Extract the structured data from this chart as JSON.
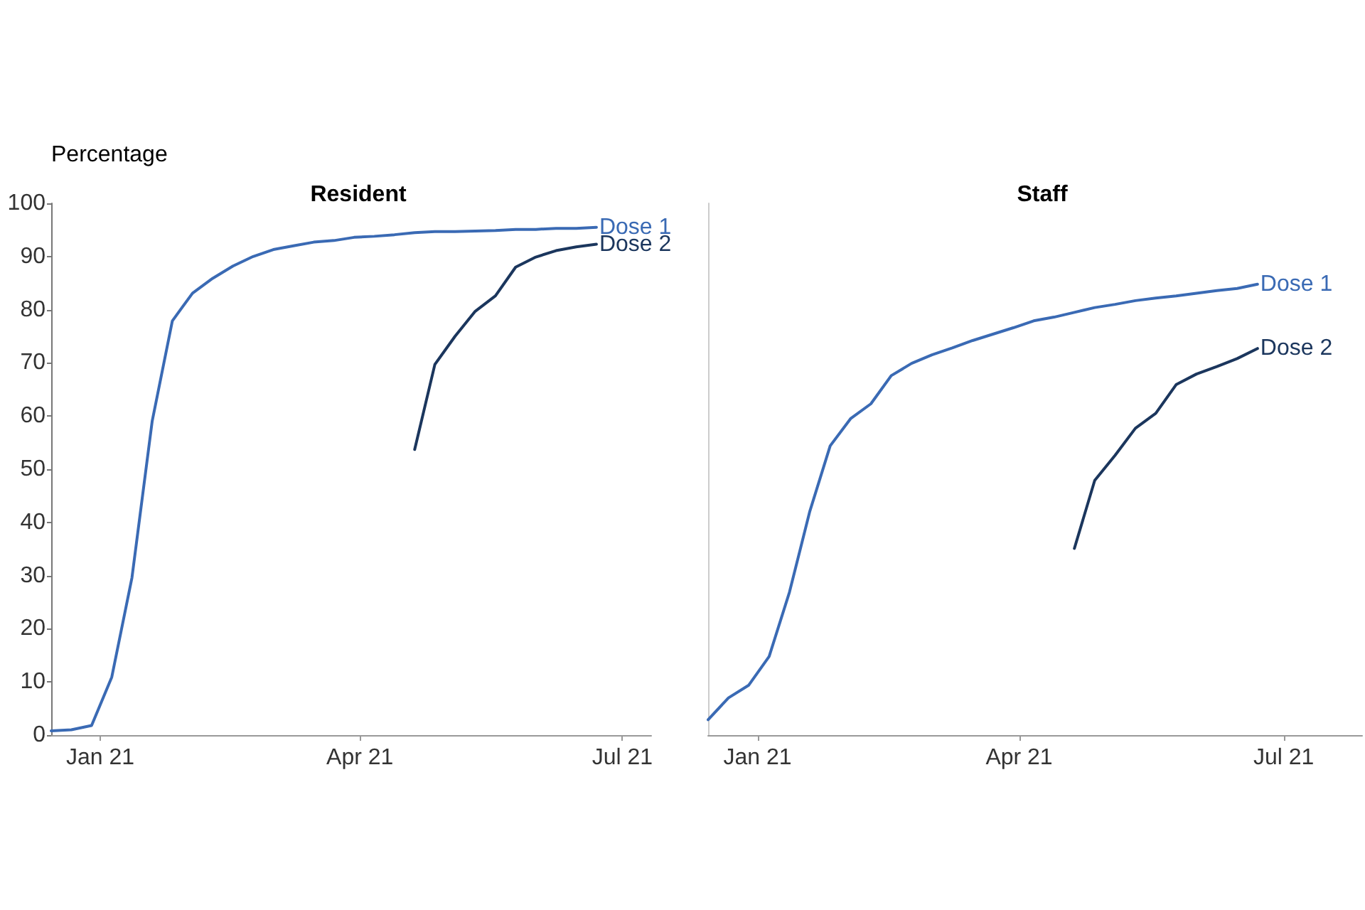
{
  "chart_data": [
    {
      "type": "line",
      "title": "Resident",
      "ylabel": "Percentage",
      "marker": "none",
      "line_style": "solid",
      "grid": false,
      "x": [
        "2020-12-15",
        "2020-12-22",
        "2020-12-29",
        "2021-01-05",
        "2021-01-12",
        "2021-01-19",
        "2021-01-26",
        "2021-02-02",
        "2021-02-09",
        "2021-02-16",
        "2021-02-23",
        "2021-03-02",
        "2021-03-09",
        "2021-03-16",
        "2021-03-23",
        "2021-03-30",
        "2021-04-06",
        "2021-04-13",
        "2021-04-20",
        "2021-04-27",
        "2021-05-04",
        "2021-05-11",
        "2021-05-18",
        "2021-05-25",
        "2021-06-01",
        "2021-06-08",
        "2021-06-15",
        "2021-06-22"
      ],
      "xlim": [
        "2020-12-15",
        "2021-07-11"
      ],
      "xticks": [
        {
          "value": "2021-01-01",
          "label": "Jan 21"
        },
        {
          "value": "2021-04-01",
          "label": "Apr 21"
        },
        {
          "value": "2021-07-01",
          "label": "Jul 21"
        }
      ],
      "ylim": [
        0,
        100
      ],
      "yticks": [
        0,
        10,
        20,
        30,
        40,
        50,
        60,
        70,
        80,
        90,
        100
      ],
      "series": [
        {
          "name": "Dose 1",
          "color": "#3a6ab4",
          "values": [
            0.8,
            1.0,
            1.8,
            10.9,
            29.6,
            59,
            77.9,
            83.1,
            85.9,
            88.2,
            90.0,
            91.3,
            92.0,
            92.7,
            93.0,
            93.6,
            93.8,
            94.1,
            94.5,
            94.7,
            94.7,
            94.8,
            94.9,
            95.1,
            95.1,
            95.3,
            95.3,
            95.5
          ]
        },
        {
          "name": "Dose 2",
          "color": "#1b365d",
          "values": [
            null,
            null,
            null,
            null,
            null,
            null,
            null,
            null,
            null,
            null,
            null,
            null,
            null,
            null,
            null,
            null,
            null,
            null,
            53.7,
            69.7,
            75.0,
            79.7,
            82.6,
            88.0,
            89.9,
            91.1,
            91.8,
            92.3
          ]
        }
      ]
    },
    {
      "type": "line",
      "title": "Staff",
      "marker": "none",
      "line_style": "solid",
      "grid": false,
      "tick_labels": "x",
      "x": [
        "2020-12-15",
        "2020-12-22",
        "2020-12-29",
        "2021-01-05",
        "2021-01-12",
        "2021-01-19",
        "2021-01-26",
        "2021-02-02",
        "2021-02-09",
        "2021-02-16",
        "2021-02-23",
        "2021-03-02",
        "2021-03-09",
        "2021-03-16",
        "2021-03-23",
        "2021-03-30",
        "2021-04-06",
        "2021-04-13",
        "2021-04-20",
        "2021-04-27",
        "2021-05-04",
        "2021-05-11",
        "2021-05-18",
        "2021-05-25",
        "2021-06-01",
        "2021-06-08",
        "2021-06-15",
        "2021-06-22"
      ],
      "xlim": [
        "2020-12-15",
        "2021-07-28"
      ],
      "xticks": [
        {
          "value": "2021-01-01",
          "label": "Jan 21"
        },
        {
          "value": "2021-04-01",
          "label": "Apr 21"
        },
        {
          "value": "2021-07-01",
          "label": "Jul 21"
        }
      ],
      "ylim": [
        0,
        100
      ],
      "yticks": [
        0,
        10,
        20,
        30,
        40,
        50,
        60,
        70,
        80,
        90,
        100
      ],
      "series": [
        {
          "name": "Dose 1",
          "color": "#3a6ab4",
          "values": [
            2.9,
            7.0,
            9.4,
            14.8,
            26.9,
            42.1,
            54.4,
            59.5,
            62.3,
            67.6,
            69.9,
            71.5,
            72.8,
            74.2,
            75.4,
            76.6,
            77.9,
            78.6,
            79.5,
            80.4,
            81.0,
            81.7,
            82.2,
            82.6,
            83.1,
            83.6,
            84.0,
            84.8
          ]
        },
        {
          "name": "Dose 2",
          "color": "#1b365d",
          "values": [
            null,
            null,
            null,
            null,
            null,
            null,
            null,
            null,
            null,
            null,
            null,
            null,
            null,
            null,
            null,
            null,
            null,
            null,
            35.1,
            47.9,
            52.6,
            57.7,
            60.5,
            65.9,
            67.9,
            69.3,
            70.8,
            72.7
          ]
        }
      ]
    }
  ]
}
